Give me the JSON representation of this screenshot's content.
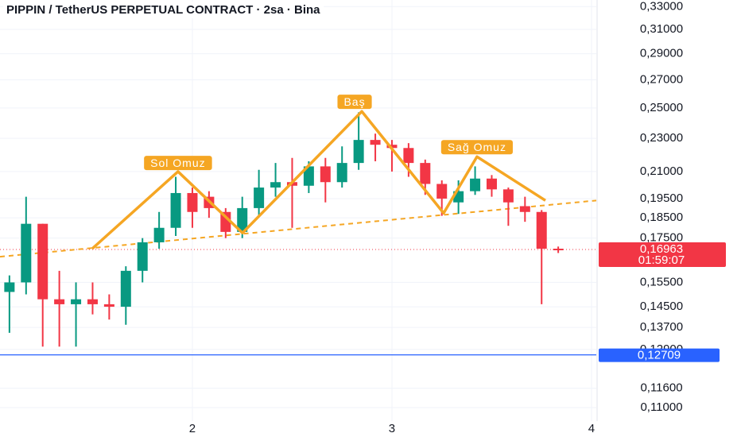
{
  "chart_data": {
    "type": "candlestick",
    "title": "PIPPIN / TetherUS PERPETUAL CONTRACT · 2sa · Bina",
    "log_scale": true,
    "grid": true,
    "up_color": "#089981",
    "down_color": "#f23645",
    "x": [
      1.0833,
      1.1667,
      1.25,
      1.3333,
      1.4167,
      1.5,
      1.5833,
      1.6667,
      1.75,
      1.8333,
      1.9167,
      2,
      2.0833,
      2.1667,
      2.25,
      2.3333,
      2.4167,
      2.5,
      2.5833,
      2.6667,
      2.75,
      2.8333,
      2.9167,
      3,
      3.0833,
      3.1667,
      3.25,
      3.3333,
      3.4167,
      3.5,
      3.5833,
      3.6667,
      3.75,
      3.8333
    ],
    "open": [
      0.151,
      0.155,
      0.182,
      0.148,
      0.146,
      0.148,
      0.146,
      0.145,
      0.16,
      0.173,
      0.18,
      0.198,
      0.196,
      0.188,
      0.178,
      0.19,
      0.201,
      0.204,
      0.202,
      0.213,
      0.204,
      0.215,
      0.229,
      0.226,
      0.224,
      0.215,
      0.203,
      0.193,
      0.199,
      0.206,
      0.2,
      0.191,
      0.188,
      0.17
    ],
    "high": [
      0.158,
      0.196,
      0.182,
      0.16,
      0.155,
      0.155,
      0.15,
      0.162,
      0.175,
      0.188,
      0.207,
      0.201,
      0.199,
      0.19,
      0.196,
      0.211,
      0.215,
      0.218,
      0.216,
      0.218,
      0.225,
      0.247,
      0.233,
      0.229,
      0.227,
      0.217,
      0.205,
      0.205,
      0.213,
      0.208,
      0.201,
      0.196,
      0.189,
      0.171
    ],
    "low": [
      0.135,
      0.15,
      0.13,
      0.13,
      0.13,
      0.142,
      0.14,
      0.138,
      0.155,
      0.17,
      0.176,
      0.18,
      0.185,
      0.175,
      0.175,
      0.186,
      0.196,
      0.18,
      0.198,
      0.193,
      0.201,
      0.211,
      0.216,
      0.21,
      0.207,
      0.197,
      0.186,
      0.187,
      0.197,
      0.196,
      0.181,
      0.183,
      0.146,
      0.168
    ],
    "close": [
      0.155,
      0.182,
      0.148,
      0.146,
      0.148,
      0.146,
      0.145,
      0.16,
      0.173,
      0.18,
      0.198,
      0.188,
      0.19,
      0.178,
      0.19,
      0.201,
      0.204,
      0.202,
      0.213,
      0.204,
      0.215,
      0.229,
      0.226,
      0.224,
      0.215,
      0.203,
      0.195,
      0.199,
      0.206,
      0.2,
      0.193,
      0.188,
      0.17,
      0.16963
    ],
    "xlim": [
      1.036,
      4.024
    ],
    "xticks": [
      2,
      3,
      4
    ],
    "ylim": [
      0.106,
      0.336
    ],
    "yticks": [
      {
        "value": 0.33,
        "label": "0,33000"
      },
      {
        "value": 0.31,
        "label": "0,31000"
      },
      {
        "value": 0.29,
        "label": "0,29000"
      },
      {
        "value": 0.27,
        "label": "0,27000"
      },
      {
        "value": 0.25,
        "label": "0,25000"
      },
      {
        "value": 0.23,
        "label": "0,23000"
      },
      {
        "value": 0.21,
        "label": "0,21000"
      },
      {
        "value": 0.195,
        "label": "0,19500"
      },
      {
        "value": 0.185,
        "label": "0,18500"
      },
      {
        "value": 0.175,
        "label": "0,17500"
      },
      {
        "value": 0.155,
        "label": "0,15500"
      },
      {
        "value": 0.145,
        "label": "0,14500"
      },
      {
        "value": 0.137,
        "label": "0,13700"
      },
      {
        "value": 0.129,
        "label": "0,12900"
      },
      {
        "value": 0.116,
        "label": "0,11600"
      },
      {
        "value": 0.11,
        "label": "0,11000"
      }
    ],
    "last_price": {
      "value": 0.16963,
      "label": "0,16963",
      "countdown": "01:59:07",
      "color": "#f23645"
    },
    "level": {
      "value": 0.12709,
      "label": "0,12709",
      "color": "#2962ff"
    },
    "pattern": {
      "color": "#f5a623",
      "x": [
        1.498,
        1.928,
        2.251,
        2.849,
        3.259,
        3.426,
        3.769
      ],
      "y": [
        0.17,
        0.21,
        0.1775,
        0.2476,
        0.1874,
        0.2187,
        0.194
      ]
    },
    "neckline": {
      "x": [
        1.036,
        4.024
      ],
      "y": [
        0.1663,
        0.194
      ]
    },
    "annotations": [
      {
        "label": "Sol Omuz",
        "x": 1.928,
        "y": 0.215
      },
      {
        "label": "Baş",
        "x": 2.813,
        "y": 0.2542
      },
      {
        "label": "Sağ Omuz",
        "x": 3.426,
        "y": 0.2245
      }
    ]
  }
}
